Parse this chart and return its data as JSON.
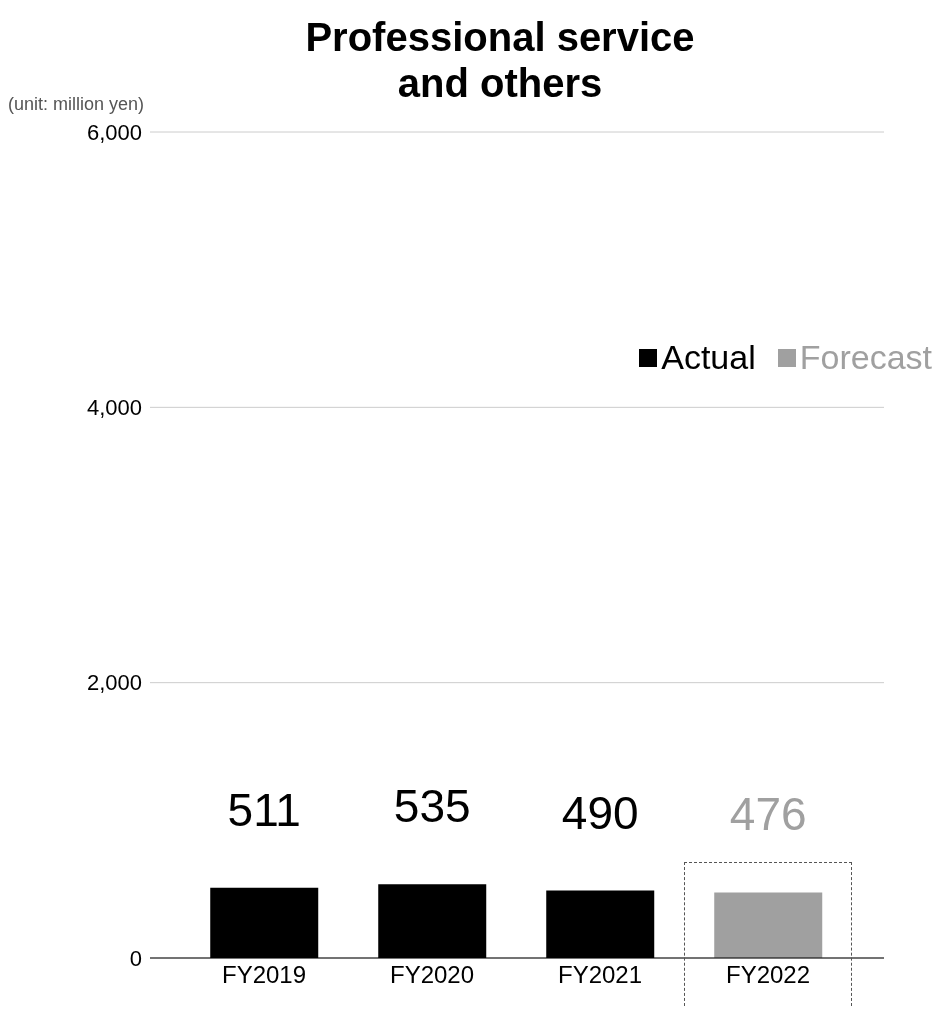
{
  "chart_data": {
    "type": "bar",
    "title": "Professional service and others",
    "ylabel": "(unit: million yen)",
    "categories": [
      "FY2019",
      "FY2020",
      "FY2021",
      "FY2022"
    ],
    "series": [
      {
        "name": "Actual",
        "color": "#000000",
        "values": [
          511,
          535,
          490,
          null
        ]
      },
      {
        "name": "Forecast",
        "color": "#a0a0a0",
        "values": [
          null,
          null,
          null,
          476
        ]
      }
    ],
    "stacked": true,
    "ylim": [
      0,
      6000
    ],
    "yticks": [
      {
        "value": 0,
        "label": "0"
      },
      {
        "value": 2000,
        "label": "2,000"
      },
      {
        "value": 4000,
        "label": "4,000"
      },
      {
        "value": 6000,
        "label": "6,000"
      }
    ],
    "grid": "y",
    "legend": "right",
    "data_labels": true
  }
}
